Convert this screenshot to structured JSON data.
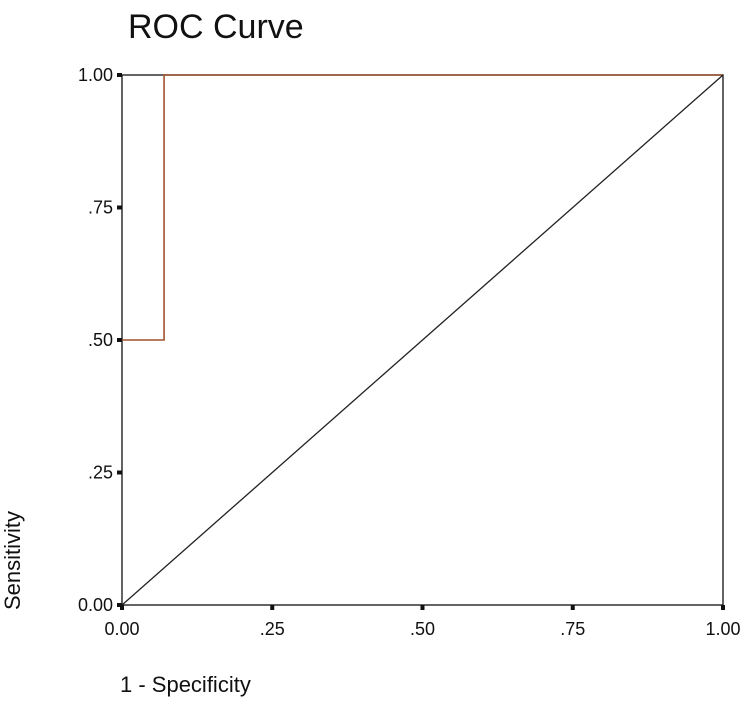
{
  "chart_data": {
    "type": "line",
    "title": "ROC Curve",
    "xlabel": "1 - Specificity",
    "ylabel": "Sensitivity",
    "xlim": [
      0,
      1
    ],
    "ylim": [
      0,
      1
    ],
    "x_ticks": [
      0,
      0.25,
      0.5,
      0.75,
      1
    ],
    "x_tick_labels": [
      "0.00",
      ".25",
      ".50",
      ".75",
      "1.00"
    ],
    "y_ticks": [
      0,
      0.25,
      0.5,
      0.75,
      1
    ],
    "y_tick_labels": [
      "0.00",
      ".25",
      ".50",
      ".75",
      "1.00"
    ],
    "grid": false,
    "series": [
      {
        "color": "#a0522d",
        "x": [
          0,
          0.07,
          0.07,
          1
        ],
        "y": [
          0.5,
          0.5,
          1,
          1
        ]
      },
      {
        "color": "#222222",
        "x": [
          0,
          1
        ],
        "y": [
          0,
          1
        ]
      }
    ]
  }
}
